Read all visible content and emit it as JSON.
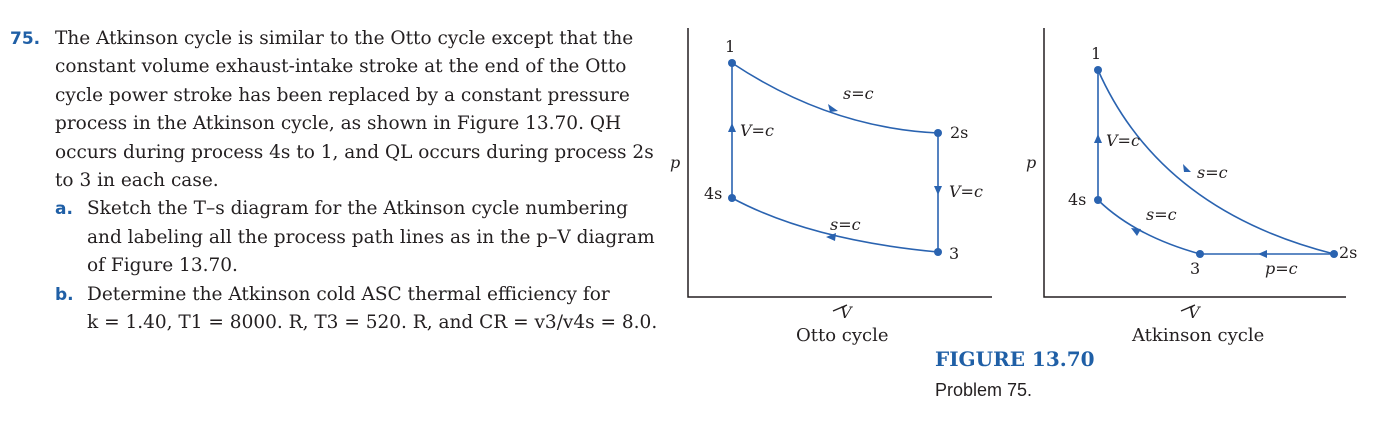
{
  "problem": {
    "number": "75.",
    "lines": [
      "The Atkinson cycle is similar to the Otto cycle except that the",
      "constant volume exhaust-intake stroke at the end of the Otto",
      "cycle power stroke has been replaced by a constant pressure",
      "process in the Atkinson cycle, as shown in Figure 13.70. QH",
      "occurs during process 4s to 1, and QL occurs during process 2s",
      "to 3 in each case."
    ],
    "parts": [
      {
        "label": "a.",
        "lines": [
          "Sketch the T–s diagram for the Atkinson cycle numbering",
          "and labeling all the process path lines as in the p–V diagram",
          "of Figure 13.70."
        ]
      },
      {
        "label": "b.",
        "lines": [
          "Determine the Atkinson cold ASC thermal efficiency for",
          "k = 1.40, T1 = 8000. R, T3 = 520. R, and CR = v3/v4s = 8.0."
        ]
      }
    ]
  },
  "figure": {
    "title": "FIGURE 13.70",
    "subtitle": "Problem 75.",
    "otto": {
      "caption": "Otto cycle",
      "y_axis": "p",
      "x_axis": "V",
      "points": [
        "1",
        "2s",
        "3",
        "4s"
      ],
      "process_labels": [
        "s=c",
        "V=c",
        "V=c",
        "s=c"
      ]
    },
    "atkinson": {
      "caption": "Atkinson cycle",
      "y_axis": "p",
      "x_axis": "V",
      "points": [
        "1",
        "2s",
        "3",
        "4s"
      ],
      "process_labels": [
        "V=c",
        "s=c",
        "s=c",
        "p=c"
      ]
    }
  },
  "colors": {
    "accent": "#1f5fa6",
    "curve": "#2a63b0",
    "text": "#231f20"
  }
}
